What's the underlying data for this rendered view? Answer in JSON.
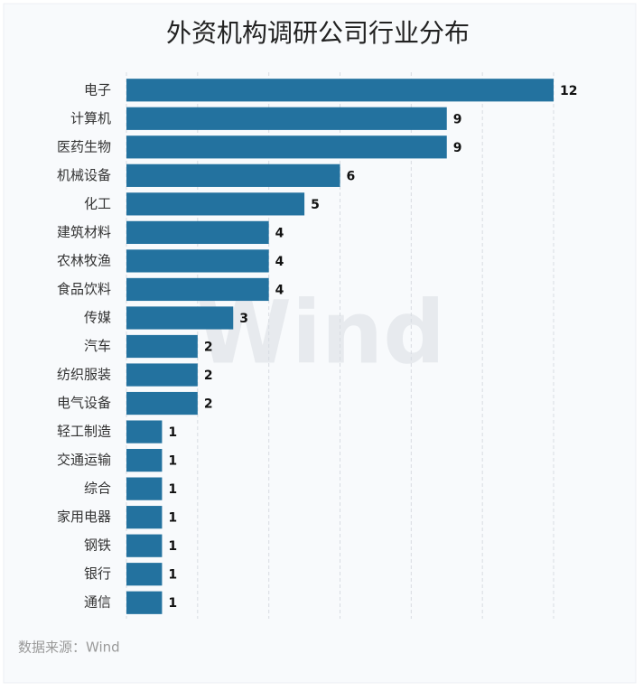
{
  "chart_data": {
    "type": "barh",
    "title": "外资机构调研公司行业分布",
    "categories": [
      "电子",
      "计算机",
      "医药生物",
      "机械设备",
      "化工",
      "建筑材料",
      "农林牧渔",
      "食品饮料",
      "传媒",
      "汽车",
      "纺织服装",
      "电气设备",
      "轻工制造",
      "交通运输",
      "综合",
      "家用电器",
      "钢铁",
      "银行",
      "通信"
    ],
    "values": [
      12,
      9,
      9,
      6,
      5,
      4,
      4,
      4,
      3,
      2,
      2,
      2,
      1,
      1,
      1,
      1,
      1,
      1,
      1
    ],
    "color": "#23729f",
    "xlim": [
      0,
      12
    ],
    "xticks": [
      0,
      2,
      4,
      6,
      8,
      10,
      12
    ],
    "grid": true,
    "watermark": "Wind",
    "source": "数据来源：Wind"
  }
}
